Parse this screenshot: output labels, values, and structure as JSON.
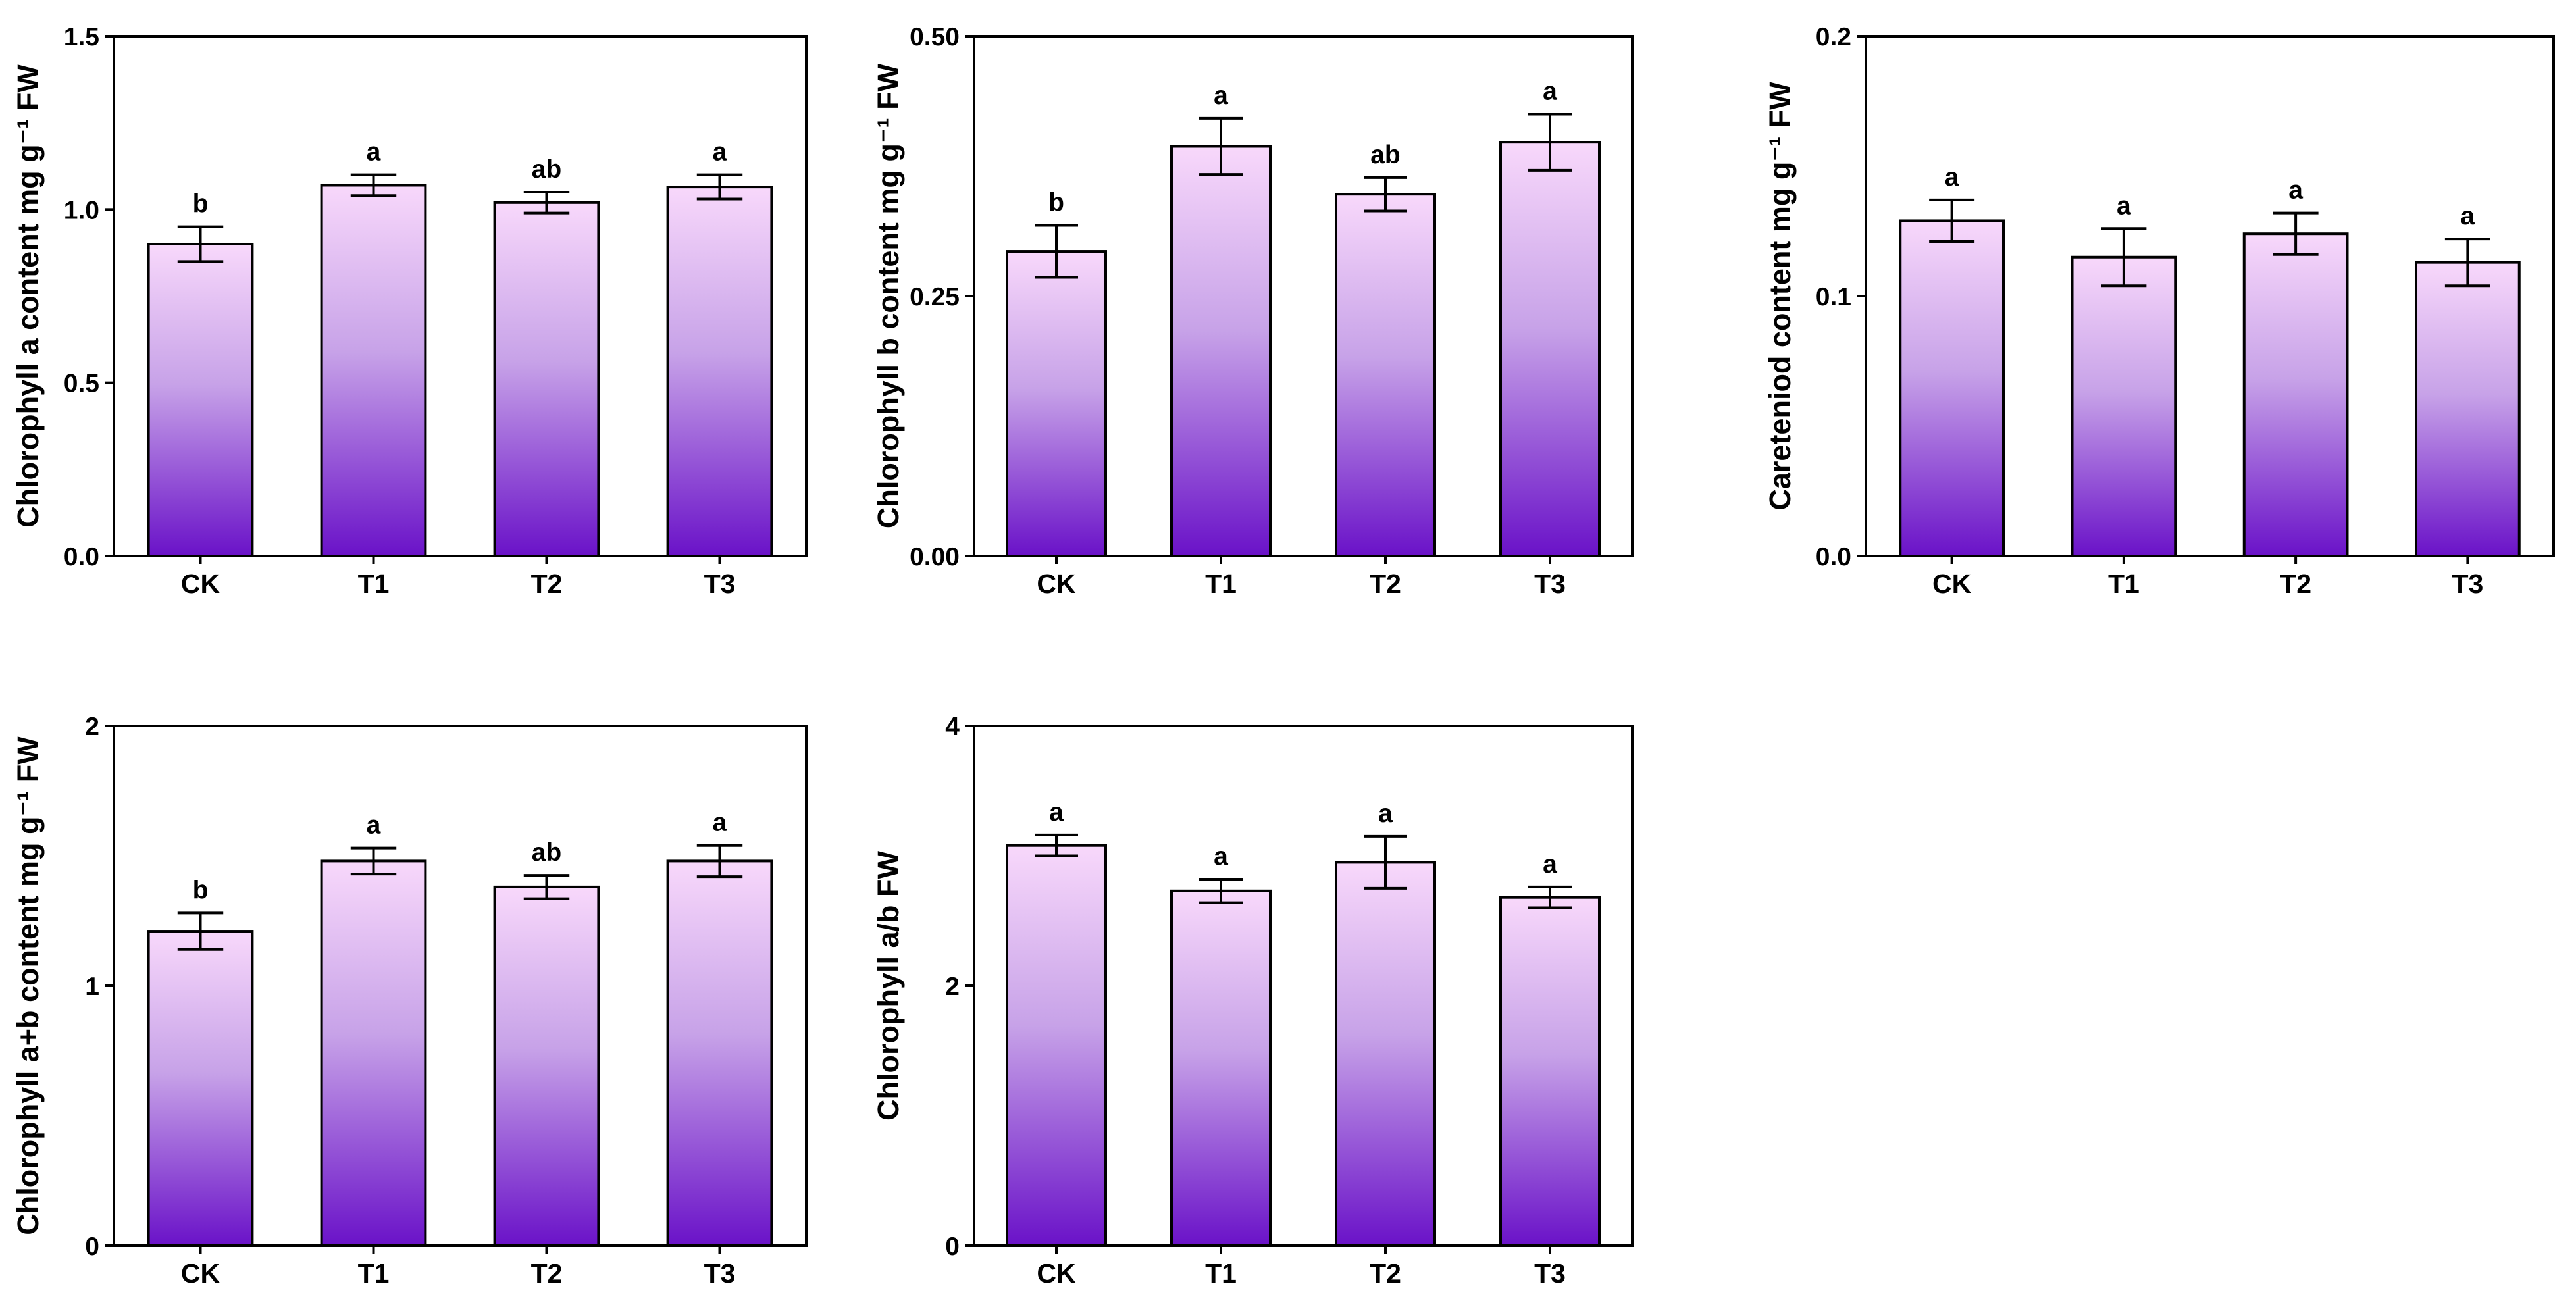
{
  "colors": {
    "bar_top": "#f8d8fb",
    "bar_mid": "#c7a2e8",
    "bar_bottom": "#6a12c8",
    "axis": "#000000"
  },
  "chart_data": [
    {
      "type": "bar",
      "title": "",
      "xlabel": "",
      "ylabel": "Chlorophyll a content mg g⁻¹ FW",
      "categories": [
        "CK",
        "T1",
        "T2",
        "T3"
      ],
      "values": [
        0.9,
        1.07,
        1.02,
        1.065
      ],
      "errors": [
        0.05,
        0.03,
        0.03,
        0.035
      ],
      "significance": [
        "b",
        "a",
        "ab",
        "a"
      ],
      "ylim": [
        0,
        1.5
      ],
      "yticks": [
        0.0,
        0.5,
        1.0,
        1.5
      ],
      "ytick_labels": [
        "0.0",
        "0.5",
        "1.0",
        "1.5"
      ]
    },
    {
      "type": "bar",
      "title": "",
      "xlabel": "",
      "ylabel": "Chlorophyll b content mg g⁻¹ FW",
      "categories": [
        "CK",
        "T1",
        "T2",
        "T3"
      ],
      "values": [
        0.293,
        0.394,
        0.348,
        0.398
      ],
      "errors": [
        0.025,
        0.027,
        0.016,
        0.027
      ],
      "significance": [
        "b",
        "a",
        "ab",
        "a"
      ],
      "ylim": [
        0,
        0.5
      ],
      "yticks": [
        0.0,
        0.25,
        0.5
      ],
      "ytick_labels": [
        "0.00",
        "0.25",
        "0.50"
      ]
    },
    {
      "type": "bar",
      "title": "",
      "xlabel": "",
      "ylabel": "Careteniod content mg g⁻¹ FW",
      "categories": [
        "CK",
        "T1",
        "T2",
        "T3"
      ],
      "values": [
        0.129,
        0.115,
        0.124,
        0.113
      ],
      "errors": [
        0.008,
        0.011,
        0.008,
        0.009
      ],
      "significance": [
        "a",
        "a",
        "a",
        "a"
      ],
      "ylim": [
        0,
        0.2
      ],
      "yticks": [
        0.0,
        0.1,
        0.2
      ],
      "ytick_labels": [
        "0.0",
        "0.1",
        "0.2"
      ]
    },
    {
      "type": "bar",
      "title": "",
      "xlabel": "",
      "ylabel": "Chlorophyll a+b content mg g⁻¹ FW",
      "categories": [
        "CK",
        "T1",
        "T2",
        "T3"
      ],
      "values": [
        1.21,
        1.48,
        1.38,
        1.48
      ],
      "errors": [
        0.07,
        0.05,
        0.045,
        0.06
      ],
      "significance": [
        "b",
        "a",
        "ab",
        "a"
      ],
      "ylim": [
        0,
        2
      ],
      "yticks": [
        0,
        1,
        2
      ],
      "ytick_labels": [
        "0",
        "1",
        "2"
      ]
    },
    {
      "type": "bar",
      "title": "",
      "xlabel": "",
      "ylabel": "Chlorophyll a/b FW",
      "categories": [
        "CK",
        "T1",
        "T2",
        "T3"
      ],
      "values": [
        3.08,
        2.73,
        2.95,
        2.68
      ],
      "errors": [
        0.08,
        0.09,
        0.2,
        0.08
      ],
      "significance": [
        "a",
        "a",
        "a",
        "a"
      ],
      "ylim": [
        0,
        4
      ],
      "yticks": [
        0,
        2,
        4
      ],
      "ytick_labels": [
        "0",
        "2",
        "4"
      ]
    }
  ]
}
